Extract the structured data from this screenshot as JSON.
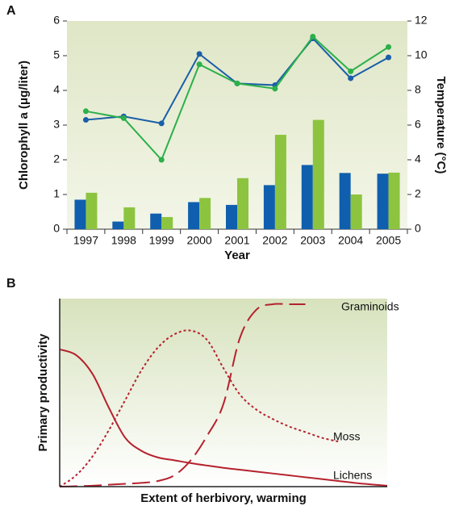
{
  "chart_data": [
    {
      "type": "bar",
      "panel_label": "A",
      "xlabel": "Year",
      "ylabel": "Chlorophyll a (μg/liter)",
      "y2label": "Temperature (°C)",
      "categories": [
        "1997",
        "1998",
        "1999",
        "2000",
        "2001",
        "2002",
        "2003",
        "2004",
        "2005"
      ],
      "series": [
        {
          "type": "bar",
          "color": "#0f5fae",
          "values": [
            0.85,
            0.22,
            0.45,
            0.78,
            0.7,
            1.27,
            1.85,
            1.62,
            1.6
          ]
        },
        {
          "type": "bar",
          "color": "#8cc43f",
          "values": [
            1.05,
            0.63,
            0.35,
            0.9,
            1.47,
            2.72,
            3.15,
            1.0,
            1.63
          ]
        },
        {
          "type": "line",
          "axis": "y2",
          "color": "#1a5fa8",
          "values": [
            6.3,
            6.5,
            6.1,
            10.1,
            8.4,
            8.3,
            11.0,
            8.7,
            9.9
          ]
        },
        {
          "type": "line",
          "axis": "y2",
          "color": "#2bb04a",
          "values": [
            6.8,
            6.4,
            4.0,
            9.5,
            8.4,
            8.1,
            11.1,
            9.1,
            10.5
          ]
        }
      ],
      "ylim": [
        0,
        6
      ],
      "yticks": [
        0,
        1,
        2,
        3,
        4,
        5,
        6
      ],
      "y2lim": [
        0,
        12
      ],
      "y2ticks": [
        0,
        2,
        4,
        6,
        8,
        10,
        12
      ]
    },
    {
      "type": "line",
      "panel_label": "B",
      "xlabel": "Extent of herbivory, warming",
      "ylabel": "Primary productivity",
      "x": [
        0,
        0.5,
        1,
        1.5,
        2,
        2.5,
        3,
        3.5,
        4,
        4.5,
        5,
        5.5,
        6,
        6.5,
        7,
        7.5,
        8,
        8.5,
        9,
        9.5,
        10
      ],
      "xlim": [
        0,
        10
      ],
      "ylim": [
        0,
        10
      ],
      "series": [
        {
          "name": "Graminoids",
          "color": "#b5222e",
          "dash": "dashed",
          "values": [
            0,
            0.02,
            0.05,
            0.1,
            0.15,
            0.2,
            0.3,
            0.6,
            1.4,
            2.7,
            4.4,
            7.9,
            9.4,
            9.7,
            9.7,
            9.7,
            null,
            null,
            null,
            null,
            null
          ]
        },
        {
          "name": "Moss",
          "color": "#b5222e",
          "dash": "dotted",
          "values": [
            0,
            0.6,
            1.6,
            3.0,
            4.6,
            6.2,
            7.4,
            8.1,
            8.3,
            7.8,
            6.3,
            4.9,
            4.1,
            3.6,
            3.2,
            2.9,
            2.6,
            2.4,
            null,
            null,
            null
          ]
        },
        {
          "name": "Lichens",
          "color": "#b5222e",
          "dash": "solid",
          "values": [
            7.3,
            7.0,
            6.0,
            4.2,
            2.6,
            1.9,
            1.55,
            1.4,
            1.25,
            1.12,
            1.0,
            0.9,
            0.8,
            0.7,
            0.6,
            0.5,
            0.4,
            0.3,
            0.2,
            0.12,
            0.05
          ]
        }
      ]
    }
  ]
}
